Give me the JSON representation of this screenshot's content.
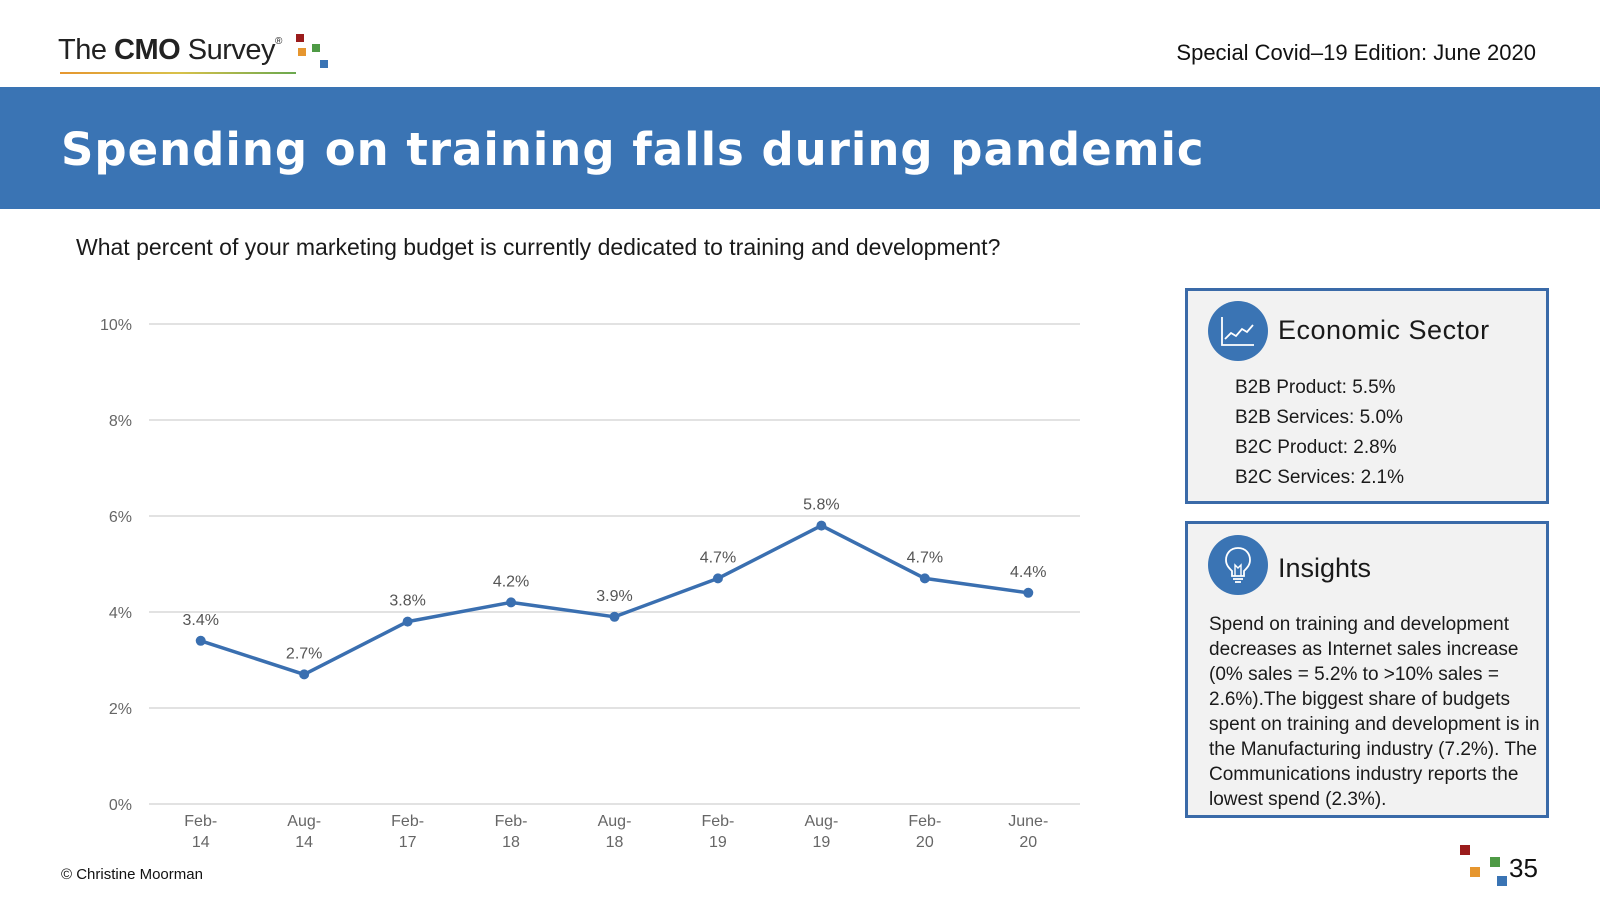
{
  "header": {
    "logo_prefix": "The ",
    "logo_bold": "CMO",
    "logo_suffix": " Survey",
    "logo_mark": "®",
    "edition": "Special Covid–19 Edition: June 2020"
  },
  "banner": {
    "title": "Spending on training falls during pandemic"
  },
  "question": "What percent of your marketing budget is currently dedicated to training and development?",
  "chart_data": {
    "type": "line",
    "title": "",
    "xlabel": "",
    "ylabel": "",
    "categories": [
      [
        "Feb-",
        "14"
      ],
      [
        "Aug-",
        "14"
      ],
      [
        "Feb-",
        "17"
      ],
      [
        "Feb-",
        "18"
      ],
      [
        "Aug-",
        "18"
      ],
      [
        "Feb-",
        "19"
      ],
      [
        "Aug-",
        "19"
      ],
      [
        "Feb-",
        "20"
      ],
      [
        "June-",
        "20"
      ]
    ],
    "values": [
      3.4,
      2.7,
      3.8,
      4.2,
      3.9,
      4.7,
      5.8,
      4.7,
      4.4
    ],
    "data_labels": [
      "3.4%",
      "2.7%",
      "3.8%",
      "4.2%",
      "3.9%",
      "4.7%",
      "5.8%",
      "4.7%",
      "4.4%"
    ],
    "y_ticks": [
      0,
      2,
      4,
      6,
      8,
      10
    ],
    "y_tick_labels": [
      "0%",
      "2%",
      "4%",
      "6%",
      "8%",
      "10%"
    ],
    "ylim": [
      0,
      10
    ],
    "grid": true,
    "series_color": "#3a6fb0"
  },
  "sector_card": {
    "title": "Economic Sector",
    "icon": "line-chart-icon",
    "items": [
      "B2B Product: 5.5%",
      "B2B Services: 5.0%",
      "B2C Product: 2.8%",
      "B2C Services: 2.1%"
    ]
  },
  "insight_card": {
    "title": "Insights",
    "icon": "lightbulb-icon",
    "body": "Spend on training and development decreases as Internet sales increase (0% sales = 5.2% to >10% sales = 2.6%).The biggest share of budgets spent on training and development is in the Manufacturing industry (7.2%). The Communications industry reports the lowest spend (2.3%)."
  },
  "footer": {
    "copyright": "© Christine Moorman",
    "page_number": "35"
  },
  "colors": {
    "brand_blue": "#3a74b4",
    "sq_red": "#9b1c1c",
    "sq_orange": "#e6962f",
    "sq_green": "#4e9a45",
    "sq_blue": "#3a74b4"
  }
}
